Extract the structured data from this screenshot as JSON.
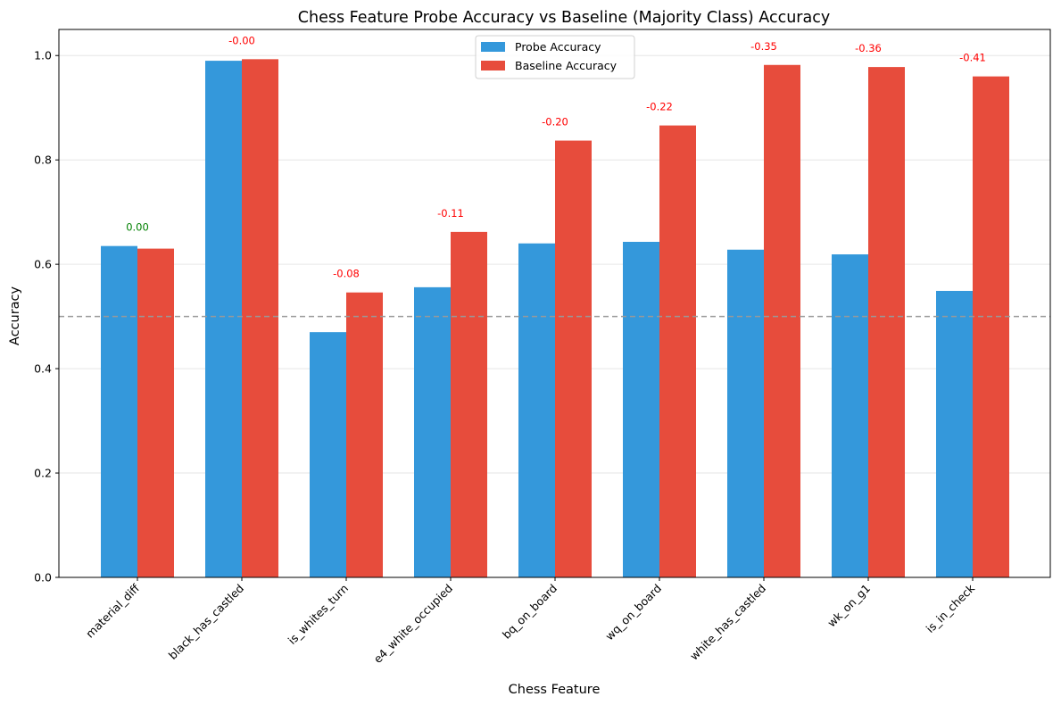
{
  "chart_data": {
    "type": "bar",
    "title": "Chess Feature Probe Accuracy vs Baseline (Majority Class) Accuracy",
    "xlabel": "Chess Feature",
    "ylabel": "Accuracy",
    "ylim": [
      0,
      1.05
    ],
    "yticks": [
      "0.0",
      "0.2",
      "0.4",
      "0.6",
      "0.8",
      "1.0"
    ],
    "ytick_values": [
      0,
      0.2,
      0.4,
      0.6,
      0.8,
      1.0
    ],
    "grid": "horizontal",
    "reference_line": 0.5,
    "legend_position": "top-center",
    "categories": [
      "material_diff",
      "black_has_castled",
      "is_whites_turn",
      "e4_white_occupied",
      "bq_on_board",
      "wq_on_board",
      "white_has_castled",
      "wk_on_g1",
      "is_in_check"
    ],
    "series": [
      {
        "name": "Probe Accuracy",
        "color": "#3498db",
        "values": [
          0.635,
          0.99,
          0.47,
          0.556,
          0.64,
          0.643,
          0.628,
          0.619,
          0.549
        ]
      },
      {
        "name": "Baseline Accuracy",
        "color": "#e74c3c",
        "values": [
          0.63,
          0.993,
          0.546,
          0.662,
          0.837,
          0.866,
          0.982,
          0.978,
          0.96
        ]
      }
    ],
    "diff_labels": [
      "0.00",
      "-0.00",
      "-0.08",
      "-0.11",
      "-0.20",
      "-0.22",
      "-0.35",
      "-0.36",
      "-0.41"
    ],
    "diff_colors": [
      "#008000",
      "#ff0000",
      "#ff0000",
      "#ff0000",
      "#ff0000",
      "#ff0000",
      "#ff0000",
      "#ff0000",
      "#ff0000"
    ]
  }
}
